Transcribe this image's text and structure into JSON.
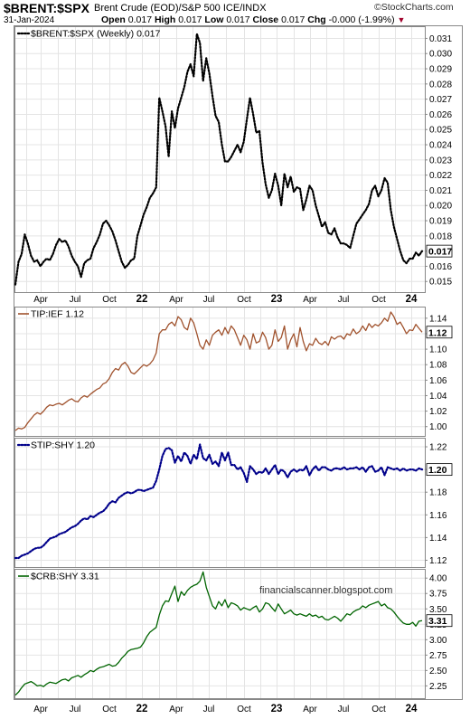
{
  "header": {
    "symbol": "$BRENT:$SPX",
    "description": "Brent Crude (EOD)/S&P 500 ICE/INDX",
    "date": "31-Jan-2024",
    "open_label": "Open",
    "open": "0.017",
    "high_label": "High",
    "high": "0.017",
    "low_label": "Low",
    "low": "0.017",
    "close_label": "Close",
    "close": "0.017",
    "chg_label": "Chg",
    "chg": "-0.000 (-1.99%)",
    "attribution": "©StockCharts.com",
    "watermark": "financialscanner.blogspot.com"
  },
  "colors": {
    "brent": "#000000",
    "tip": "#a0522d",
    "stip": "#00008b",
    "crb": "#006400"
  },
  "chart_data": [
    {
      "type": "line",
      "legend": "$BRENT:$SPX (Weekly) 0.017",
      "line_style": "dotted",
      "x_tick_labels": [
        "Apr",
        "Jul",
        "Oct",
        "22",
        "Apr",
        "Jul",
        "Oct",
        "23",
        "Apr",
        "Jul",
        "Oct",
        "24"
      ],
      "y_ticks": [
        0.015,
        0.016,
        0.017,
        0.018,
        0.019,
        0.02,
        0.021,
        0.022,
        0.023,
        0.024,
        0.025,
        0.026,
        0.027,
        0.028,
        0.029,
        0.03,
        0.031
      ],
      "y_tick_labels": [
        "0.015",
        "0.016",
        "0.017",
        "0.018",
        "0.019",
        "0.020",
        "0.021",
        "0.022",
        "0.023",
        "0.024",
        "0.025",
        "0.026",
        "0.027",
        "0.028",
        "0.029",
        "0.030",
        "0.031"
      ],
      "ylim": [
        0.0143,
        0.0318
      ],
      "last_value": "0.017",
      "values": [
        0.0148,
        0.0163,
        0.0168,
        0.0181,
        0.0175,
        0.0167,
        0.0163,
        0.0164,
        0.016,
        0.0163,
        0.0165,
        0.0164,
        0.0168,
        0.0174,
        0.0178,
        0.0176,
        0.0177,
        0.0173,
        0.0167,
        0.0163,
        0.016,
        0.0153,
        0.0162,
        0.0164,
        0.0165,
        0.0172,
        0.0176,
        0.0181,
        0.0188,
        0.019,
        0.0187,
        0.0183,
        0.0177,
        0.017,
        0.0163,
        0.0159,
        0.0161,
        0.0164,
        0.0165,
        0.018,
        0.0187,
        0.0194,
        0.0199,
        0.0205,
        0.0208,
        0.0212,
        0.0271,
        0.0262,
        0.0252,
        0.0232,
        0.0262,
        0.0251,
        0.0264,
        0.0271,
        0.0278,
        0.0288,
        0.0293,
        0.0285,
        0.0313,
        0.0307,
        0.0282,
        0.0297,
        0.0287,
        0.0272,
        0.0259,
        0.0255,
        0.024,
        0.0229,
        0.0229,
        0.0232,
        0.0236,
        0.024,
        0.0235,
        0.0242,
        0.0257,
        0.0271,
        0.026,
        0.0248,
        0.0249,
        0.0228,
        0.0214,
        0.0205,
        0.021,
        0.0221,
        0.0213,
        0.02,
        0.0221,
        0.0212,
        0.0219,
        0.0209,
        0.0212,
        0.0211,
        0.0197,
        0.0204,
        0.0213,
        0.021,
        0.02,
        0.0193,
        0.0186,
        0.0189,
        0.0182,
        0.0181,
        0.0185,
        0.0179,
        0.0175,
        0.0175,
        0.0174,
        0.0172,
        0.018,
        0.0188,
        0.0191,
        0.0194,
        0.0197,
        0.0201,
        0.021,
        0.0213,
        0.0206,
        0.021,
        0.0218,
        0.0215,
        0.0197,
        0.0186,
        0.0178,
        0.017,
        0.0164,
        0.0162,
        0.0165,
        0.0165,
        0.0169,
        0.0167,
        0.017
      ]
    },
    {
      "type": "line",
      "legend": "TIP:IEF 1.12",
      "line_style": "solid",
      "y_ticks": [
        1.0,
        1.02,
        1.04,
        1.06,
        1.08,
        1.1,
        1.12,
        1.14
      ],
      "y_tick_labels": [
        "1.00",
        "1.02",
        "1.04",
        "1.06",
        "1.08",
        "1.10",
        "1.12",
        "1.14"
      ],
      "ylim": [
        0.988,
        1.155
      ],
      "last_value": "1.12",
      "values": [
        0.995,
        0.998,
        0.997,
        0.999,
        1.005,
        1.01,
        1.015,
        1.018,
        1.016,
        1.02,
        1.025,
        1.028,
        1.027,
        1.029,
        1.03,
        1.028,
        1.031,
        1.034,
        1.036,
        1.033,
        1.032,
        1.037,
        1.04,
        1.038,
        1.042,
        1.045,
        1.048,
        1.05,
        1.055,
        1.057,
        1.062,
        1.07,
        1.075,
        1.073,
        1.08,
        1.083,
        1.078,
        1.07,
        1.068,
        1.072,
        1.076,
        1.08,
        1.078,
        1.081,
        1.086,
        1.095,
        1.12,
        1.125,
        1.125,
        1.132,
        1.135,
        1.13,
        1.142,
        1.138,
        1.128,
        1.125,
        1.14,
        1.134,
        1.12,
        1.105,
        1.1,
        1.112,
        1.105,
        1.118,
        1.122,
        1.125,
        1.118,
        1.128,
        1.12,
        1.13,
        1.125,
        1.115,
        1.105,
        1.118,
        1.112,
        1.1,
        1.12,
        1.108,
        1.11,
        1.122,
        1.115,
        1.1,
        1.105,
        1.125,
        1.11,
        1.115,
        1.13,
        1.1,
        1.112,
        1.12,
        1.103,
        1.128,
        1.11,
        1.098,
        1.107,
        1.105,
        1.114,
        1.108,
        1.106,
        1.11,
        1.105,
        1.116,
        1.113,
        1.116,
        1.117,
        1.113,
        1.12,
        1.118,
        1.126,
        1.12,
        1.123,
        1.13,
        1.124,
        1.133,
        1.128,
        1.132,
        1.13,
        1.134,
        1.14,
        1.136,
        1.148,
        1.142,
        1.132,
        1.135,
        1.128,
        1.12,
        1.125,
        1.124,
        1.132,
        1.127,
        1.122
      ]
    },
    {
      "type": "line",
      "legend": "STIP:SHY 1.20",
      "line_style": "dotted",
      "y_ticks": [
        1.12,
        1.14,
        1.16,
        1.18,
        1.2,
        1.22
      ],
      "y_tick_labels": [
        "1.12",
        "1.14",
        "1.16",
        "1.18",
        "1.20",
        "1.22"
      ],
      "ylim": [
        1.114,
        1.228
      ],
      "last_value": "1.20",
      "values": [
        1.122,
        1.122,
        1.124,
        1.125,
        1.126,
        1.128,
        1.13,
        1.131,
        1.131,
        1.133,
        1.136,
        1.139,
        1.14,
        1.141,
        1.143,
        1.144,
        1.145,
        1.147,
        1.149,
        1.15,
        1.152,
        1.155,
        1.157,
        1.156,
        1.159,
        1.158,
        1.16,
        1.162,
        1.163,
        1.166,
        1.17,
        1.172,
        1.171,
        1.175,
        1.177,
        1.179,
        1.18,
        1.179,
        1.18,
        1.182,
        1.182,
        1.181,
        1.182,
        1.183,
        1.184,
        1.19,
        1.2,
        1.212,
        1.218,
        1.219,
        1.217,
        1.206,
        1.212,
        1.207,
        1.215,
        1.212,
        1.205,
        1.213,
        1.209,
        1.222,
        1.21,
        1.208,
        1.213,
        1.205,
        1.207,
        1.203,
        1.215,
        1.208,
        1.215,
        1.204,
        1.204,
        1.2,
        1.202,
        1.197,
        1.189,
        1.203,
        1.2,
        1.196,
        1.198,
        1.197,
        1.201,
        1.196,
        1.2,
        1.204,
        1.196,
        1.2,
        1.198,
        1.193,
        1.198,
        1.2,
        1.198,
        1.2,
        1.199,
        1.203,
        1.195,
        1.2,
        1.203,
        1.199,
        1.202,
        1.202,
        1.2,
        1.199,
        1.201,
        1.201,
        1.2,
        1.202,
        1.2,
        1.201,
        1.201,
        1.202,
        1.2,
        1.202,
        1.198,
        1.202,
        1.203,
        1.198,
        1.199,
        1.202,
        1.195,
        1.202,
        1.201,
        1.2,
        1.201,
        1.199,
        1.201,
        1.199,
        1.2,
        1.2,
        1.199,
        1.201,
        1.2
      ]
    },
    {
      "type": "line",
      "legend": "$CRB:SHY 3.31",
      "line_style": "solid",
      "y_ticks": [
        2.25,
        2.5,
        2.75,
        3.0,
        3.25,
        3.5,
        3.75,
        4.0
      ],
      "y_tick_labels": [
        "2.25",
        "2.50",
        "2.75",
        "3.00",
        "3.25",
        "3.50",
        "3.75",
        "4.00"
      ],
      "ylim": [
        2.05,
        4.15
      ],
      "last_value": "3.31",
      "values": [
        2.1,
        2.15,
        2.22,
        2.28,
        2.3,
        2.32,
        2.29,
        2.25,
        2.26,
        2.24,
        2.28,
        2.31,
        2.3,
        2.29,
        2.32,
        2.35,
        2.36,
        2.33,
        2.38,
        2.4,
        2.42,
        2.39,
        2.43,
        2.46,
        2.5,
        2.48,
        2.52,
        2.55,
        2.56,
        2.58,
        2.6,
        2.57,
        2.58,
        2.63,
        2.7,
        2.75,
        2.81,
        2.84,
        2.85,
        2.86,
        2.88,
        2.95,
        3.05,
        3.12,
        3.16,
        3.2,
        3.4,
        3.55,
        3.63,
        3.62,
        3.75,
        3.87,
        3.62,
        3.78,
        3.72,
        3.8,
        3.85,
        3.88,
        3.9,
        3.95,
        4.1,
        3.85,
        3.7,
        3.55,
        3.5,
        3.62,
        3.55,
        3.65,
        3.52,
        3.6,
        3.58,
        3.55,
        3.48,
        3.52,
        3.5,
        3.48,
        3.52,
        3.55,
        3.45,
        3.5,
        3.6,
        3.58,
        3.52,
        3.46,
        3.58,
        3.5,
        3.42,
        3.45,
        3.48,
        3.42,
        3.4,
        3.42,
        3.4,
        3.38,
        3.42,
        3.38,
        3.4,
        3.36,
        3.38,
        3.33,
        3.32,
        3.35,
        3.38,
        3.35,
        3.3,
        3.36,
        3.42,
        3.4,
        3.45,
        3.48,
        3.5,
        3.55,
        3.52,
        3.56,
        3.58,
        3.6,
        3.62,
        3.55,
        3.58,
        3.52,
        3.5,
        3.45,
        3.38,
        3.32,
        3.27,
        3.25,
        3.25,
        3.28,
        3.22,
        3.3,
        3.31
      ]
    }
  ]
}
